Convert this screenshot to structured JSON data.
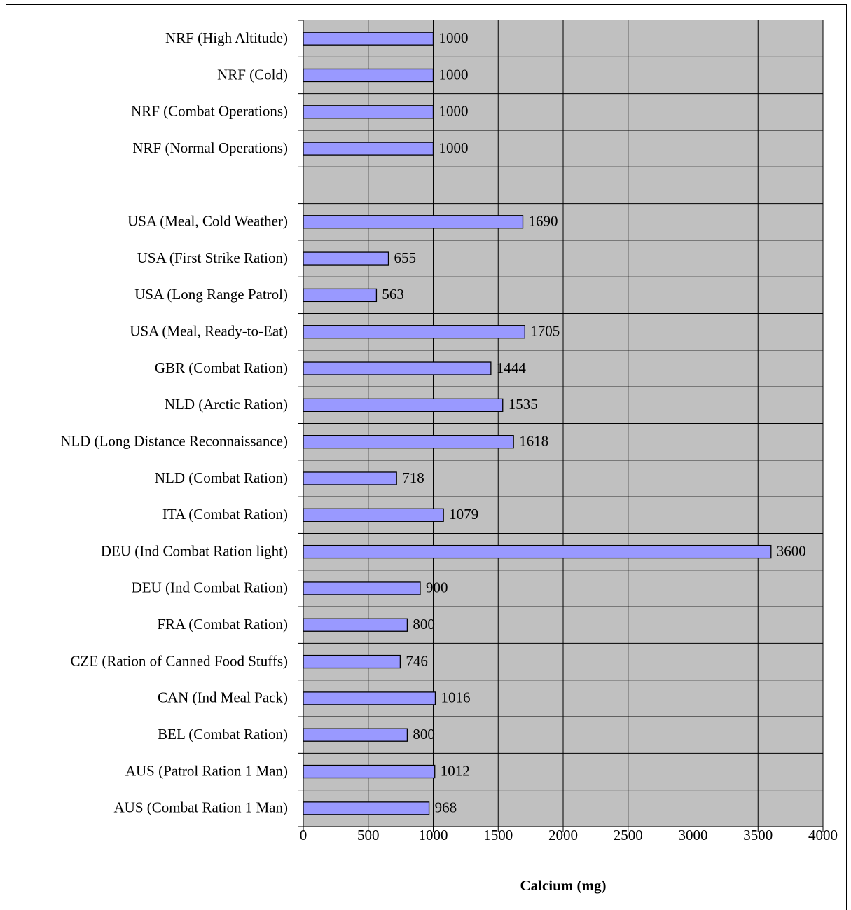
{
  "chart_data": {
    "type": "bar",
    "orientation": "horizontal",
    "categories": [
      "NRF (High Altitude)",
      "NRF (Cold)",
      "NRF (Combat Operations)",
      "NRF (Normal Operations)",
      null,
      "USA (Meal, Cold Weather)",
      "USA (First Strike Ration)",
      "USA (Long Range Patrol)",
      "USA (Meal, Ready-to-Eat)",
      "GBR (Combat Ration)",
      "NLD (Arctic Ration)",
      "NLD (Long Distance Reconnaissance)",
      "NLD (Combat Ration)",
      "ITA (Combat Ration)",
      "DEU (Ind Combat Ration light)",
      "DEU (Ind Combat Ration)",
      "FRA (Combat Ration)",
      "CZE (Ration of Canned Food Stuffs)",
      "CAN (Ind Meal Pack)",
      "BEL (Combat Ration)",
      "AUS (Patrol Ration 1 Man)",
      "AUS (Combat Ration 1 Man)"
    ],
    "values": [
      1000,
      1000,
      1000,
      1000,
      null,
      1690,
      655,
      563,
      1705,
      1444,
      1535,
      1618,
      718,
      1079,
      3600,
      900,
      800,
      746,
      1016,
      800,
      1012,
      968
    ],
    "color": "#9999ff",
    "x_label": "Calcium (mg)",
    "xlim": [
      0,
      4000
    ],
    "xticks": [
      0,
      500,
      1000,
      1500,
      2000,
      2500,
      3000,
      3500,
      4000
    ],
    "grid": true
  }
}
